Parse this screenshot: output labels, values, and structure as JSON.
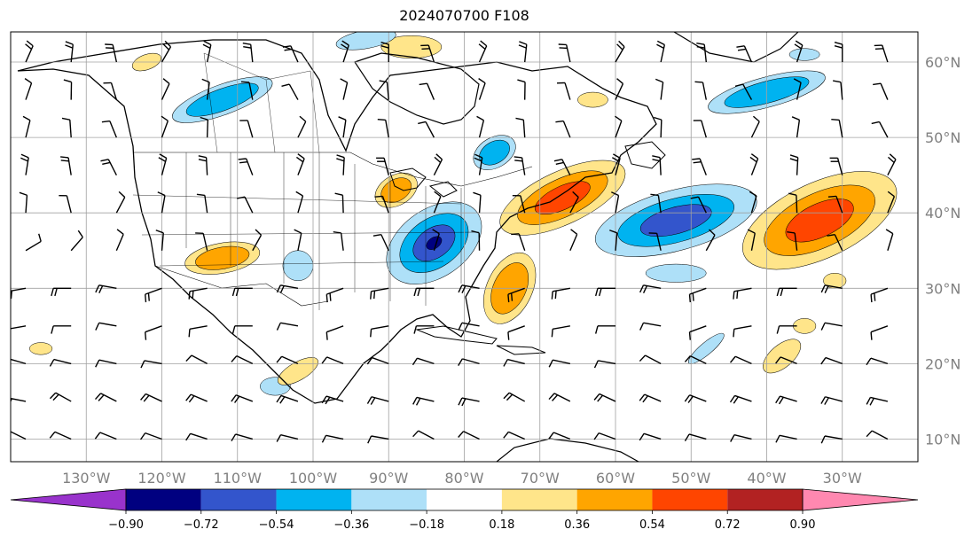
{
  "title": "2024070700 F108",
  "map": {
    "projection": "plate-carree",
    "lon_range": [
      -140,
      -20
    ],
    "lat_range": [
      7,
      64
    ],
    "lon_ticks": [
      {
        "lon": -130,
        "label": "130°W"
      },
      {
        "lon": -120,
        "label": "120°W"
      },
      {
        "lon": -110,
        "label": "110°W"
      },
      {
        "lon": -100,
        "label": "100°W"
      },
      {
        "lon": -90,
        "label": "90°W"
      },
      {
        "lon": -80,
        "label": "80°W"
      },
      {
        "lon": -70,
        "label": "70°W"
      },
      {
        "lon": -60,
        "label": "60°W"
      },
      {
        "lon": -50,
        "label": "50°W"
      },
      {
        "lon": -40,
        "label": "40°W"
      },
      {
        "lon": -30,
        "label": "30°W"
      }
    ],
    "lat_ticks": [
      {
        "lat": 60,
        "label": "60°N"
      },
      {
        "lat": 50,
        "label": "50°N"
      },
      {
        "lat": 40,
        "label": "40°N"
      },
      {
        "lat": 30,
        "label": "30°N"
      },
      {
        "lat": 20,
        "label": "20°N"
      },
      {
        "lat": 10,
        "label": "10°N"
      }
    ],
    "grid": true
  },
  "colorbar": {
    "orientation": "horizontal",
    "extend": "both",
    "levels": [
      "−0.90",
      "−0.72",
      "−0.54",
      "−0.36",
      "−0.18",
      "0.18",
      "0.36",
      "0.54",
      "0.72",
      "0.90"
    ],
    "colors": [
      "#9933cc",
      "#000080",
      "#3355cc",
      "#00b3f0",
      "#aee0f8",
      "#ffffff",
      "#ffe58a",
      "#ffa500",
      "#ff4500",
      "#b22222",
      "#ff88b0"
    ]
  },
  "anomalies": [
    {
      "lon": -84,
      "lat": 36,
      "rx": 7,
      "ry": 4.5,
      "rot": -35,
      "sign": "neg",
      "max": 3
    },
    {
      "lon": -67,
      "lat": 42,
      "rx": 9,
      "ry": 3.5,
      "rot": -25,
      "sign": "pos",
      "max": 2
    },
    {
      "lon": -52,
      "lat": 39,
      "rx": 11,
      "ry": 4,
      "rot": -15,
      "sign": "neg",
      "max": 2
    },
    {
      "lon": -33,
      "lat": 39,
      "rx": 11,
      "ry": 5,
      "rot": -25,
      "sign": "pos",
      "max": 2
    },
    {
      "lon": -89,
      "lat": 43,
      "rx": 3,
      "ry": 2,
      "rot": -30,
      "sign": "pos",
      "max": 1
    },
    {
      "lon": -74,
      "lat": 30,
      "rx": 3,
      "ry": 5,
      "rot": 25,
      "sign": "pos",
      "max": 1
    },
    {
      "lon": -112,
      "lat": 34,
      "rx": 5,
      "ry": 2,
      "rot": -10,
      "sign": "pos",
      "max": 1
    },
    {
      "lon": -112,
      "lat": 55,
      "rx": 7,
      "ry": 2,
      "rot": -20,
      "sign": "neg",
      "max": 1
    },
    {
      "lon": -40,
      "lat": 56,
      "rx": 8,
      "ry": 2,
      "rot": -15,
      "sign": "neg",
      "max": 1
    },
    {
      "lon": -76,
      "lat": 48,
      "rx": 3,
      "ry": 2,
      "rot": -30,
      "sign": "neg",
      "max": 1
    },
    {
      "lon": -87,
      "lat": 62,
      "rx": 4,
      "ry": 1.5,
      "rot": 0,
      "sign": "pos",
      "max": 0
    },
    {
      "lon": -93,
      "lat": 63,
      "rx": 4,
      "ry": 1.2,
      "rot": -10,
      "sign": "neg",
      "max": 0
    },
    {
      "lon": -52,
      "lat": 32,
      "rx": 4,
      "ry": 1.2,
      "rot": 0,
      "sign": "neg",
      "max": 0
    },
    {
      "lon": -38,
      "lat": 21,
      "rx": 3,
      "ry": 1.5,
      "rot": -40,
      "sign": "pos",
      "max": 0
    },
    {
      "lon": -48,
      "lat": 22,
      "rx": 3,
      "ry": 0.8,
      "rot": -40,
      "sign": "neg",
      "max": 0
    },
    {
      "lon": -102,
      "lat": 33,
      "rx": 2,
      "ry": 2,
      "rot": 0,
      "sign": "neg",
      "max": 0
    },
    {
      "lon": -105,
      "lat": 17,
      "rx": 2,
      "ry": 1.2,
      "rot": 0,
      "sign": "neg",
      "max": 0
    },
    {
      "lon": -102,
      "lat": 19,
      "rx": 3,
      "ry": 1.2,
      "rot": -30,
      "sign": "pos",
      "max": 0
    },
    {
      "lon": -136,
      "lat": 22,
      "rx": 1.5,
      "ry": 0.8,
      "rot": 0,
      "sign": "pos",
      "max": 0
    },
    {
      "lon": -122,
      "lat": 60,
      "rx": 2,
      "ry": 1,
      "rot": -20,
      "sign": "pos",
      "max": 0
    },
    {
      "lon": -31,
      "lat": 31,
      "rx": 1.5,
      "ry": 1,
      "rot": 0,
      "sign": "pos",
      "max": 0
    },
    {
      "lon": -35,
      "lat": 25,
      "rx": 1.5,
      "ry": 1,
      "rot": 0,
      "sign": "pos",
      "max": 0
    },
    {
      "lon": -63,
      "lat": 55,
      "rx": 2,
      "ry": 1,
      "rot": 0,
      "sign": "pos",
      "max": 0
    },
    {
      "lon": -35,
      "lat": 61,
      "rx": 2,
      "ry": 0.8,
      "rot": 0,
      "sign": "neg",
      "max": 0
    }
  ],
  "barbs": {
    "lon_step": 6,
    "lat_step": 5,
    "barb_count": 1
  }
}
